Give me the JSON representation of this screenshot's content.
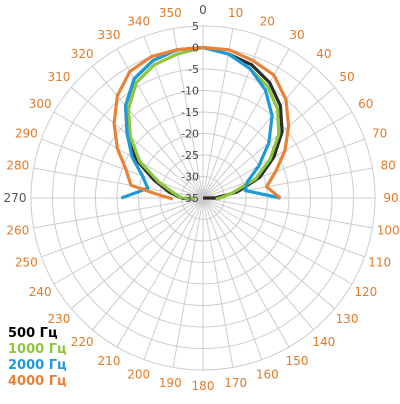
{
  "chart_data": {
    "type": "polar-line",
    "angle_unit": "degrees",
    "angle_ticks": [
      0,
      10,
      20,
      30,
      40,
      50,
      60,
      70,
      80,
      90,
      100,
      110,
      120,
      130,
      140,
      150,
      160,
      170,
      180,
      190,
      200,
      210,
      220,
      230,
      240,
      250,
      260,
      270,
      280,
      290,
      300,
      310,
      320,
      330,
      340,
      350
    ],
    "angle_tick_color": "#e07b2a",
    "angle_tick_color_dark": "#555555",
    "dark_ticks": [
      0,
      270
    ],
    "radial_ticks": [
      5,
      0,
      -5,
      -10,
      -15,
      -20,
      -25,
      -30,
      -35
    ],
    "radial_range": [
      -35,
      5
    ],
    "grid": true,
    "grid_color": "#cccccc",
    "legend_position": "bottom-left",
    "series": [
      {
        "name": "500 Гц",
        "color": "#2b2b2b",
        "points": [
          [
            295,
            -35
          ],
          [
            280,
            -30
          ],
          [
            270,
            -26
          ],
          [
            260,
            -18
          ],
          [
            250,
            -10
          ],
          [
            240,
            -5
          ],
          [
            230,
            -2
          ],
          [
            220,
            -1
          ],
          [
            210,
            0
          ],
          [
            200,
            0
          ],
          [
            190,
            0
          ],
          [
            180,
            0
          ],
          [
            170,
            0
          ],
          [
            160,
            0
          ],
          [
            150,
            0
          ],
          [
            140,
            -1
          ],
          [
            130,
            -2
          ],
          [
            120,
            -4
          ],
          [
            110,
            -7
          ],
          [
            100,
            -12
          ],
          [
            90,
            -17
          ],
          [
            80,
            -24
          ],
          [
            70,
            -31
          ],
          [
            65,
            -35
          ]
        ],
        "order": "clockwise-from-left",
        "pairs": [
          [
            262,
            -33
          ],
          [
            270,
            -30
          ],
          [
            280,
            -27
          ],
          [
            290,
            -23
          ],
          [
            300,
            -17
          ],
          [
            310,
            -12
          ],
          [
            320,
            -7
          ],
          [
            330,
            -3
          ],
          [
            340,
            -1
          ],
          [
            350,
            0
          ],
          [
            0,
            0
          ],
          [
            10,
            -1
          ],
          [
            20,
            -2
          ],
          [
            30,
            -4
          ],
          [
            40,
            -7
          ],
          [
            50,
            -11
          ],
          [
            60,
            -16
          ],
          [
            70,
            -21
          ],
          [
            80,
            -27
          ],
          [
            90,
            -32
          ],
          [
            98,
            -35
          ]
        ]
      },
      {
        "name": "1000 Гц",
        "color": "#8dc63f",
        "pairs": [
          [
            266,
            -33
          ],
          [
            270,
            -30
          ],
          [
            280,
            -28
          ],
          [
            290,
            -24
          ],
          [
            300,
            -18
          ],
          [
            310,
            -13
          ],
          [
            320,
            -8
          ],
          [
            330,
            -4
          ],
          [
            340,
            -2
          ],
          [
            350,
            -1
          ],
          [
            0,
            0
          ],
          [
            10,
            -1
          ],
          [
            20,
            -3
          ],
          [
            30,
            -5
          ],
          [
            40,
            -8
          ],
          [
            50,
            -12
          ],
          [
            60,
            -17
          ],
          [
            70,
            -22
          ],
          [
            80,
            -28
          ],
          [
            90,
            -31
          ],
          [
            95,
            -32
          ]
        ]
      },
      {
        "name": "2000 Гц",
        "color": "#1e9ad6",
        "pairs": [
          [
            270,
            -16
          ],
          [
            280,
            -22
          ],
          [
            290,
            -20
          ],
          [
            300,
            -16
          ],
          [
            310,
            -12
          ],
          [
            320,
            -7
          ],
          [
            330,
            -3
          ],
          [
            340,
            -1
          ],
          [
            350,
            0
          ],
          [
            0,
            0
          ],
          [
            10,
            -1
          ],
          [
            20,
            -3
          ],
          [
            30,
            -6
          ],
          [
            40,
            -10
          ],
          [
            50,
            -15
          ],
          [
            60,
            -20
          ],
          [
            70,
            -24
          ],
          [
            80,
            -25
          ],
          [
            90,
            -17
          ]
        ]
      },
      {
        "name": "4000 Гц",
        "color": "#e8823a",
        "pairs": [
          [
            268,
            -28
          ],
          [
            275,
            -24
          ],
          [
            280,
            -18
          ],
          [
            290,
            -16
          ],
          [
            300,
            -12
          ],
          [
            310,
            -8
          ],
          [
            320,
            -4
          ],
          [
            330,
            -1
          ],
          [
            340,
            0
          ],
          [
            350,
            0
          ],
          [
            0,
            0
          ],
          [
            10,
            0
          ],
          [
            20,
            -1
          ],
          [
            30,
            -2
          ],
          [
            40,
            -5
          ],
          [
            50,
            -9
          ],
          [
            60,
            -13
          ],
          [
            70,
            -17
          ],
          [
            80,
            -20
          ],
          [
            90,
            -17
          ]
        ]
      }
    ]
  },
  "legend": [
    {
      "label": "500 Гц",
      "color": "#000000"
    },
    {
      "label": "1000 Гц",
      "color": "#8dc63f"
    },
    {
      "label": "2000 Гц",
      "color": "#1e9ad6"
    },
    {
      "label": "4000 Гц",
      "color": "#e8823a"
    }
  ]
}
